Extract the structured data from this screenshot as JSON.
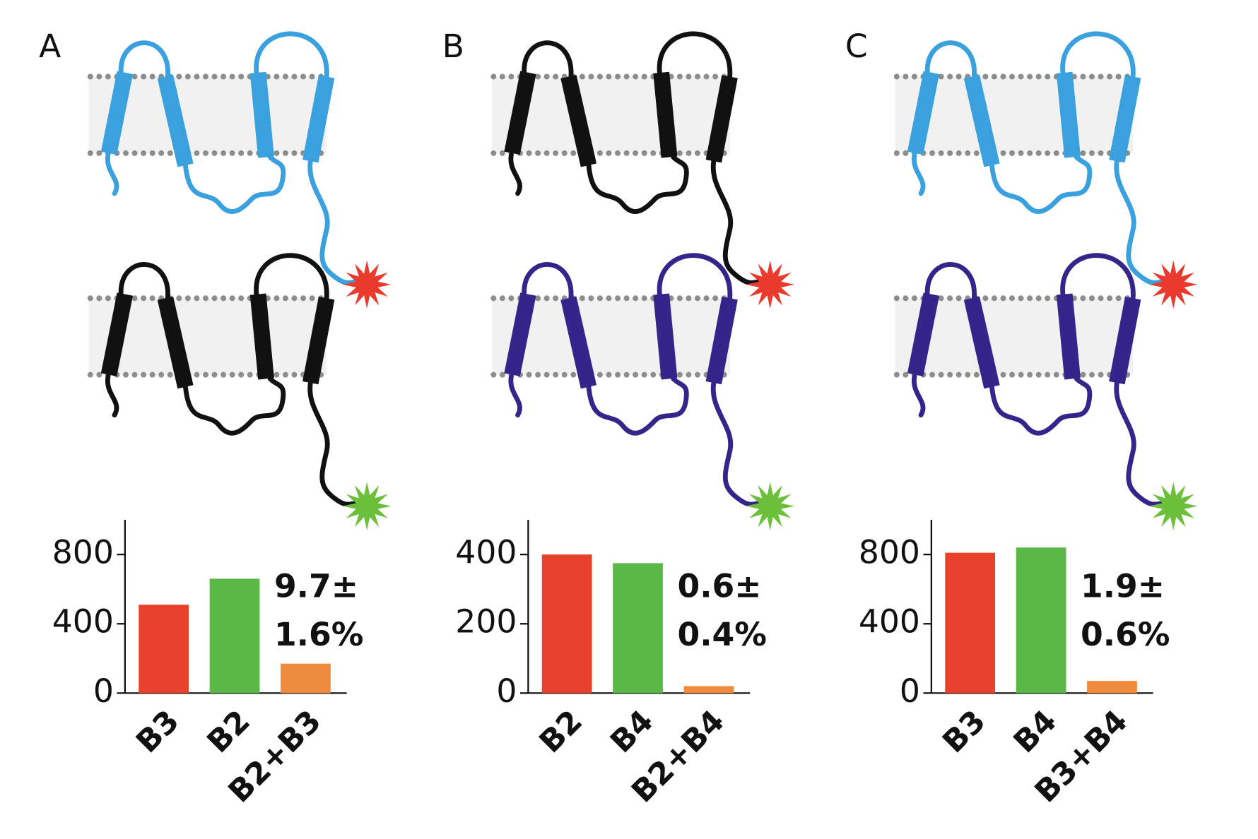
{
  "chart_data": [
    {
      "type": "bar",
      "panel_label": "A",
      "categories": [
        "B3",
        "B2",
        "B2+B3"
      ],
      "values": [
        510,
        660,
        170
      ],
      "colors": [
        "#e8412c",
        "#5ab847",
        "#f08a3c"
      ],
      "ylim": [
        0,
        1000
      ],
      "yticks": [
        0,
        400,
        800
      ],
      "annotation": [
        "9.7±",
        "1.6%"
      ]
    },
    {
      "type": "bar",
      "panel_label": "B",
      "categories": [
        "B2",
        "B4",
        "B2+B4"
      ],
      "values": [
        400,
        375,
        20
      ],
      "colors": [
        "#e8412c",
        "#5ab847",
        "#f08a3c"
      ],
      "ylim": [
        0,
        500
      ],
      "yticks": [
        0,
        200,
        400
      ],
      "annotation": [
        "0.6±",
        "0.4%"
      ]
    },
    {
      "type": "bar",
      "panel_label": "C",
      "categories": [
        "B3",
        "B4",
        "B3+B4"
      ],
      "values": [
        810,
        840,
        70
      ],
      "colors": [
        "#e8412c",
        "#5ab847",
        "#f08a3c"
      ],
      "ylim": [
        0,
        1000
      ],
      "yticks": [
        0,
        400,
        800
      ],
      "annotation": [
        "1.9±",
        "0.6%"
      ]
    }
  ]
}
